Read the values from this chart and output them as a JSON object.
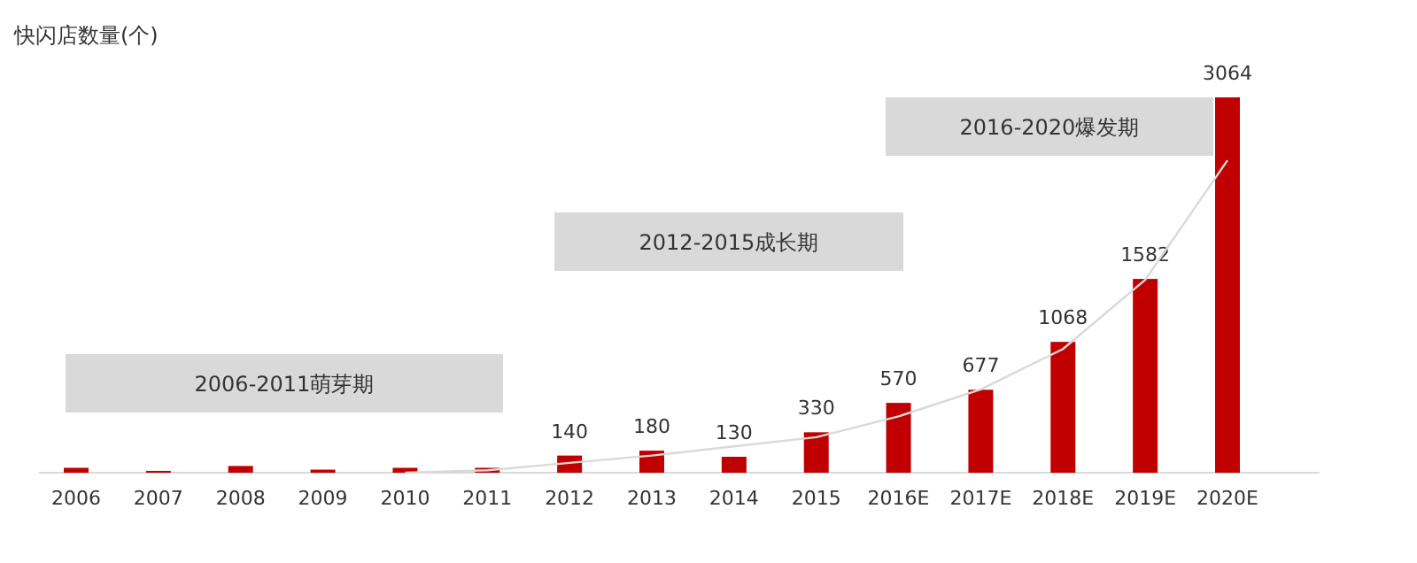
{
  "chart_data": {
    "type": "bar",
    "title": "快闪店数量(个)",
    "categories": [
      "2006",
      "2007",
      "2008",
      "2009",
      "2010",
      "2011",
      "2012",
      "2013",
      "2014",
      "2015",
      "2016E",
      "2017E",
      "2018E",
      "2019E",
      "2020E"
    ],
    "series": [
      {
        "color": "#c00000",
        "values": [
          40,
          15,
          55,
          25,
          40,
          40,
          140,
          180,
          130,
          330,
          570,
          677,
          1068,
          1582,
          3064
        ],
        "value_labels": [
          null,
          null,
          null,
          null,
          null,
          null,
          "140",
          "180",
          "130",
          "330",
          "570",
          "677",
          "1068",
          "1582",
          "3064"
        ]
      },
      {
        "type": "line",
        "color": "#d9d9d9",
        "values": [
          null,
          null,
          null,
          null,
          0,
          20,
          80,
          140,
          215,
          290,
          460,
          680,
          1010,
          1575,
          2550
        ]
      }
    ],
    "annotations": [
      "2006-2011萌芽期",
      "2012-2015成长期",
      "2016-2020爆发期"
    ]
  }
}
